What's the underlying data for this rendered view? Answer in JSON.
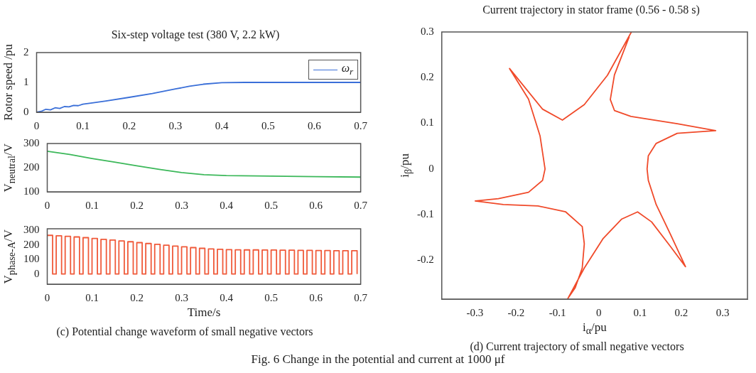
{
  "chart_data": [
    {
      "type": "line",
      "title": "Six-step voltage test (380 V, 2.2 kW)",
      "ylabel": "Rotor speed /pu",
      "legend": "top right",
      "x": [
        0,
        0.01,
        0.02,
        0.03,
        0.04,
        0.05,
        0.06,
        0.07,
        0.08,
        0.09,
        0.1,
        0.12,
        0.15,
        0.2,
        0.25,
        0.3,
        0.33,
        0.36,
        0.4,
        0.45,
        0.5,
        0.6,
        0.7
      ],
      "series": [
        {
          "name": "ω$_{r}$",
          "color": "#3a6fd8",
          "values": [
            0,
            0.03,
            0.1,
            0.08,
            0.15,
            0.13,
            0.19,
            0.18,
            0.23,
            0.22,
            0.27,
            0.31,
            0.38,
            0.5,
            0.63,
            0.78,
            0.87,
            0.94,
            0.99,
            1,
            1,
            1,
            1
          ]
        }
      ],
      "xlim": [
        0,
        0.7
      ],
      "xticks": [
        0,
        0.1,
        0.2,
        0.3,
        0.4,
        0.5,
        0.6,
        0.7
      ],
      "ylim": [
        0,
        2
      ],
      "yticks": [
        0,
        1,
        2
      ]
    },
    {
      "type": "line",
      "ylabel": "V$_{neutral}$/V",
      "x": [
        0,
        0.05,
        0.1,
        0.15,
        0.2,
        0.25,
        0.3,
        0.35,
        0.4,
        0.5,
        0.6,
        0.7
      ],
      "series": [
        {
          "color": "#3cb85a",
          "values": [
            268,
            255,
            238,
            223,
            208,
            193,
            180,
            171,
            167,
            165,
            163,
            161
          ]
        }
      ],
      "xlim": [
        0,
        0.7
      ],
      "xticks": [
        0,
        0.1,
        0.2,
        0.3,
        0.4,
        0.5,
        0.6,
        0.7
      ],
      "ylim": [
        100,
        300
      ],
      "yticks": [
        100,
        200,
        300
      ]
    },
    {
      "type": "step",
      "ylabel": "V$_{phase-A}$/V",
      "xlabel": "Time/s",
      "annotations": [
        "(c) Potential change waveform of small negative vectors"
      ],
      "x": [
        0,
        0.012,
        0.02,
        0.032,
        0.04,
        0.052,
        0.06,
        0.072,
        0.08,
        0.092,
        0.1,
        0.112,
        0.12,
        0.132,
        0.14,
        0.152,
        0.16,
        0.172,
        0.18,
        0.192,
        0.2,
        0.212,
        0.22,
        0.232,
        0.24,
        0.252,
        0.26,
        0.272,
        0.28,
        0.292,
        0.3,
        0.312,
        0.32,
        0.332,
        0.34,
        0.352,
        0.36,
        0.372,
        0.38,
        0.392,
        0.4,
        0.412,
        0.42,
        0.432,
        0.44,
        0.452,
        0.46,
        0.472,
        0.48,
        0.492,
        0.5,
        0.512,
        0.52,
        0.532,
        0.54,
        0.552,
        0.56,
        0.572,
        0.58,
        0.592,
        0.6,
        0.612,
        0.62,
        0.632,
        0.64,
        0.652,
        0.66,
        0.672,
        0.68,
        0.692
      ],
      "series": [
        {
          "color": "#f05a3a",
          "values": [
            265,
            0,
            262,
            0,
            258,
            0,
            254,
            0,
            249,
            0,
            244,
            0,
            238,
            0,
            233,
            0,
            227,
            0,
            221,
            0,
            215,
            0,
            209,
            0,
            203,
            0,
            197,
            0,
            191,
            0,
            186,
            0,
            181,
            0,
            176,
            0,
            172,
            0,
            169,
            0,
            167,
            0,
            166,
            0,
            165,
            0,
            165,
            0,
            164,
            0,
            164,
            0,
            163,
            0,
            163,
            0,
            162,
            0,
            162,
            0,
            161,
            0,
            161,
            0,
            160,
            0,
            160,
            0,
            160,
            0
          ]
        }
      ],
      "xlim": [
        0,
        0.7
      ],
      "xticks": [
        0,
        0.1,
        0.2,
        0.3,
        0.4,
        0.5,
        0.6,
        0.7
      ],
      "ylim": [
        -70,
        310
      ],
      "yticks": [
        0,
        100,
        200,
        300
      ]
    },
    {
      "type": "line",
      "title": "Current trajectory in stator frame (0.56 - 0.58 s)",
      "xlabel": "i$_{α}$/pu",
      "ylabel": "i$_{β}$/pu",
      "annotations": [
        "(d) Current trajectory of small negative vectors",
        "Fig. 6  Change in the potential and current at 1000 μf"
      ],
      "series": [
        {
          "color": "#f04a2a",
          "x": [
            0.079,
            0.021,
            -0.035,
            -0.088,
            -0.136,
            -0.216,
            -0.17,
            -0.142,
            -0.13,
            -0.136,
            -0.17,
            -0.243,
            -0.299,
            -0.231,
            -0.147,
            -0.08,
            -0.04,
            -0.035,
            -0.04,
            -0.057,
            -0.075,
            -0.035,
            0.01,
            0.055,
            0.094,
            0.128,
            0.173,
            0.21,
            0.173,
            0.139,
            0.12,
            0.117,
            0.12,
            0.139,
            0.19,
            0.283,
            0.19,
            0.078,
            0.038,
            0.028,
            0.038,
            0.074
          ],
          "values": [
            0.3,
            0.205,
            0.141,
            0.107,
            0.131,
            0.22,
            0.153,
            0.072,
            0,
            -0.025,
            -0.051,
            -0.065,
            -0.07,
            -0.078,
            -0.081,
            -0.094,
            -0.126,
            -0.164,
            -0.217,
            -0.26,
            -0.284,
            -0.217,
            -0.153,
            -0.11,
            -0.094,
            -0.116,
            -0.169,
            -0.214,
            -0.142,
            -0.078,
            -0.025,
            0,
            0.029,
            0.056,
            0.078,
            0.084,
            0.099,
            0.115,
            0.128,
            0.152,
            0.206,
            0.29
          ]
        }
      ],
      "xlim": [
        -0.38,
        0.36
      ],
      "xticks": [
        -0.3,
        -0.2,
        -0.1,
        0,
        0.1,
        0.2,
        0.3
      ],
      "ylim": [
        -0.285,
        0.3
      ],
      "yticks": [
        -0.2,
        -0.1,
        0,
        0.1,
        0.2,
        0.3
      ]
    }
  ]
}
